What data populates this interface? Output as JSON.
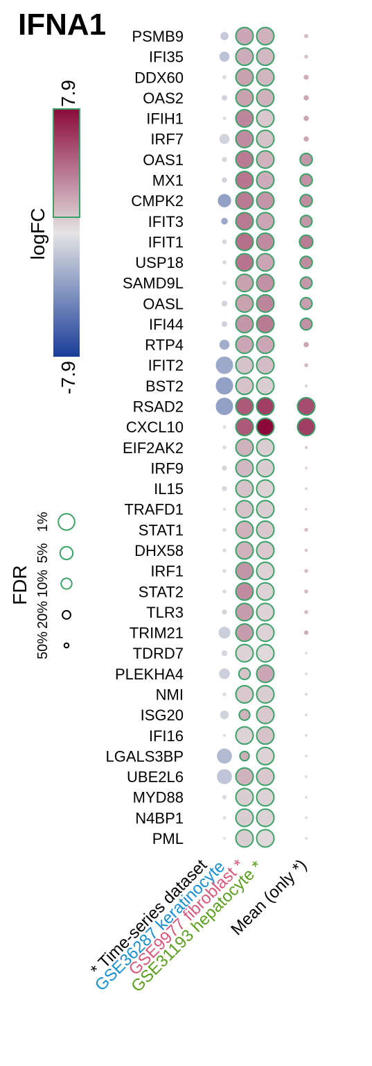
{
  "chart_data": {
    "type": "dot-heatmap",
    "title": "IFNA1",
    "color_legend": {
      "title": "logFC",
      "max": 7.9,
      "min": -7.9,
      "max_label": "7.9",
      "min_label": "-7.9",
      "colors": {
        "high": "#8b0a3a",
        "mid": "#e4e4e4",
        "low": "#1a3d99",
        "significant_outline": "#3aa168"
      }
    },
    "size_legend": {
      "title": "FDR",
      "items": [
        {
          "label": "1%",
          "fdr": 0.01
        },
        {
          "label": "5%",
          "fdr": 0.05
        },
        {
          "label": "10%",
          "fdr": 0.1
        },
        {
          "label": "20%",
          "fdr": 0.2
        },
        {
          "label": "50%",
          "fdr": 0.5
        }
      ]
    },
    "columns": [
      {
        "label": "* Time-series dataset",
        "color": "#000000"
      },
      {
        "label": "GSE36287 keratinocyte",
        "color": "#1a8fd0"
      },
      {
        "label": "GSE9977 fibroblast *",
        "color": "#d9587a"
      },
      {
        "label": "GSE31193 hepatocyte *",
        "color": "#5a9e1e"
      },
      {
        "label": "Mean (only *)",
        "color": "#000000"
      }
    ],
    "genes": [
      "PSMB9",
      "IFI35",
      "DDX60",
      "OAS2",
      "IFIH1",
      "IRF7",
      "OAS1",
      "MX1",
      "CMPK2",
      "IFIT3",
      "IFIT1",
      "USP18",
      "SAMD9L",
      "OASL",
      "IFI44",
      "RTP4",
      "IFIT2",
      "BST2",
      "RSAD2",
      "CXCL10",
      "EIF2AK2",
      "IRF9",
      "IL15",
      "TRAFD1",
      "STAT1",
      "DHX58",
      "IRF1",
      "STAT2",
      "TLR3",
      "TRIM21",
      "TDRD7",
      "PLEKHA4",
      "NMI",
      "ISG20",
      "IFI16",
      "LGALS3BP",
      "UBE2L6",
      "MYD88",
      "N4BP1",
      "PML"
    ],
    "cells": [
      [
        [
          -1.2,
          0.2,
          false
        ],
        [
          2.2,
          0.005,
          true
        ],
        [
          1.8,
          0.005,
          true
        ],
        [
          1.4,
          0.55,
          false
        ]
      ],
      [
        [
          -1.6,
          0.12,
          false
        ],
        [
          2.0,
          0.005,
          true
        ],
        [
          1.6,
          0.005,
          true
        ],
        [
          1.2,
          0.58,
          false
        ]
      ],
      [
        [
          -0.4,
          0.55,
          false
        ],
        [
          2.4,
          0.005,
          true
        ],
        [
          1.7,
          0.005,
          true
        ],
        [
          2.0,
          0.45,
          false
        ]
      ],
      [
        [
          -0.8,
          0.4,
          false
        ],
        [
          2.4,
          0.005,
          true
        ],
        [
          1.8,
          0.005,
          true
        ],
        [
          2.2,
          0.42,
          false
        ]
      ],
      [
        [
          -0.3,
          0.62,
          false
        ],
        [
          3.4,
          0.005,
          true
        ],
        [
          1.0,
          0.005,
          true
        ],
        [
          2.2,
          0.42,
          false
        ]
      ],
      [
        [
          -0.8,
          0.12,
          false
        ],
        [
          3.2,
          0.005,
          true
        ],
        [
          1.2,
          0.005,
          true
        ],
        [
          2.2,
          0.42,
          false
        ]
      ],
      [
        [
          -0.6,
          0.45,
          false
        ],
        [
          3.8,
          0.005,
          true
        ],
        [
          1.8,
          0.005,
          true
        ],
        [
          2.8,
          0.06,
          true
        ]
      ],
      [
        [
          -0.8,
          0.42,
          false
        ],
        [
          4.0,
          0.005,
          true
        ],
        [
          2.0,
          0.005,
          true
        ],
        [
          3.0,
          0.06,
          true
        ]
      ],
      [
        [
          -3.2,
          0.04,
          false
        ],
        [
          3.8,
          0.005,
          true
        ],
        [
          2.8,
          0.005,
          true
        ],
        [
          3.2,
          0.06,
          true
        ]
      ],
      [
        [
          -2.8,
          0.3,
          false
        ],
        [
          3.8,
          0.005,
          true
        ],
        [
          2.2,
          0.005,
          true
        ],
        [
          2.8,
          0.07,
          true
        ]
      ],
      [
        [
          -0.6,
          0.5,
          false
        ],
        [
          4.2,
          0.005,
          true
        ],
        [
          3.2,
          0.005,
          true
        ],
        [
          3.7,
          0.04,
          true
        ]
      ],
      [
        [
          -0.4,
          0.55,
          false
        ],
        [
          4.0,
          0.005,
          true
        ],
        [
          2.2,
          0.005,
          true
        ],
        [
          3.2,
          0.06,
          true
        ]
      ],
      [
        [
          -0.4,
          0.55,
          false
        ],
        [
          2.4,
          0.005,
          true
        ],
        [
          3.0,
          0.005,
          true
        ],
        [
          2.7,
          0.07,
          true
        ]
      ],
      [
        [
          -0.8,
          0.38,
          false
        ],
        [
          2.4,
          0.005,
          true
        ],
        [
          3.4,
          0.005,
          true
        ],
        [
          2.5,
          0.07,
          true
        ]
      ],
      [
        [
          -0.8,
          0.38,
          false
        ],
        [
          2.8,
          0.005,
          true
        ],
        [
          3.8,
          0.005,
          true
        ],
        [
          3.0,
          0.07,
          true
        ]
      ],
      [
        [
          -2.6,
          0.12,
          false
        ],
        [
          2.2,
          0.005,
          true
        ],
        [
          2.2,
          0.005,
          true
        ],
        [
          2.2,
          0.42,
          false
        ]
      ],
      [
        [
          -2.8,
          0.005,
          false
        ],
        [
          1.2,
          0.005,
          true
        ],
        [
          1.4,
          0.005,
          true
        ],
        [
          1.6,
          0.58,
          false
        ]
      ],
      [
        [
          -3.2,
          0.005,
          false
        ],
        [
          1.2,
          0.005,
          true
        ],
        [
          0.8,
          0.005,
          true
        ],
        [
          0.6,
          0.7,
          false
        ]
      ],
      [
        [
          -3.2,
          0.005,
          false
        ],
        [
          5.0,
          0.005,
          true
        ],
        [
          6.0,
          0.005,
          true
        ],
        [
          5.5,
          0.005,
          true
        ]
      ],
      [
        [
          -0.2,
          0.62,
          false
        ],
        [
          5.0,
          0.005,
          true
        ],
        [
          7.9,
          0.005,
          true
        ],
        [
          6.0,
          0.005,
          true
        ]
      ],
      [
        [
          -0.4,
          0.58,
          false
        ],
        [
          1.8,
          0.005,
          true
        ],
        [
          0.8,
          0.005,
          true
        ],
        [
          1.0,
          0.7,
          false
        ]
      ],
      [
        [
          -0.6,
          0.45,
          false
        ],
        [
          1.6,
          0.005,
          true
        ],
        [
          0.8,
          0.005,
          true
        ],
        [
          0.6,
          0.75,
          false
        ]
      ],
      [
        [
          -0.6,
          0.45,
          false
        ],
        [
          1.2,
          0.005,
          true
        ],
        [
          0.6,
          0.005,
          true
        ],
        [
          0.6,
          0.75,
          false
        ]
      ],
      [
        [
          -0.2,
          0.65,
          false
        ],
        [
          1.2,
          0.005,
          true
        ],
        [
          0.8,
          0.005,
          true
        ],
        [
          0.6,
          0.75,
          false
        ]
      ],
      [
        [
          -0.4,
          0.58,
          false
        ],
        [
          1.8,
          0.005,
          true
        ],
        [
          1.0,
          0.005,
          true
        ],
        [
          1.4,
          0.58,
          false
        ]
      ],
      [
        [
          -0.4,
          0.58,
          false
        ],
        [
          1.8,
          0.005,
          true
        ],
        [
          1.0,
          0.005,
          true
        ],
        [
          1.0,
          0.65,
          false
        ]
      ],
      [
        [
          -0.4,
          0.58,
          false
        ],
        [
          2.8,
          0.005,
          true
        ],
        [
          0.6,
          0.005,
          true
        ],
        [
          1.4,
          0.58,
          false
        ]
      ],
      [
        [
          -0.4,
          0.58,
          false
        ],
        [
          3.2,
          0.005,
          true
        ],
        [
          0.6,
          0.005,
          true
        ],
        [
          1.6,
          0.58,
          false
        ]
      ],
      [
        [
          -0.6,
          0.45,
          false
        ],
        [
          2.6,
          0.005,
          true
        ],
        [
          0.6,
          0.005,
          true
        ],
        [
          1.6,
          0.58,
          false
        ]
      ],
      [
        [
          -1.0,
          0.07,
          false
        ],
        [
          2.6,
          0.005,
          true
        ],
        [
          0.6,
          0.005,
          true
        ],
        [
          2.0,
          0.52,
          false
        ]
      ],
      [
        [
          -0.6,
          0.38,
          false
        ],
        [
          0.6,
          0.005,
          true
        ],
        [
          0.4,
          0.005,
          true
        ],
        [
          0.4,
          0.75,
          false
        ]
      ],
      [
        [
          -1.0,
          0.1,
          false
        ],
        [
          1.2,
          0.08,
          true
        ],
        [
          2.2,
          0.005,
          true
        ],
        [
          0.4,
          0.75,
          false
        ]
      ],
      [
        [
          -0.4,
          0.58,
          false
        ],
        [
          1.0,
          0.005,
          true
        ],
        [
          0.8,
          0.005,
          true
        ],
        [
          0.6,
          0.75,
          false
        ]
      ],
      [
        [
          -0.8,
          0.18,
          false
        ],
        [
          1.8,
          0.1,
          true
        ],
        [
          1.0,
          0.005,
          true
        ],
        [
          0.4,
          0.75,
          false
        ]
      ],
      [
        [
          -0.2,
          0.72,
          false
        ],
        [
          0.6,
          0.005,
          true
        ],
        [
          1.2,
          0.005,
          true
        ],
        [
          0.4,
          0.75,
          false
        ]
      ],
      [
        [
          -2.0,
          0.02,
          false
        ],
        [
          2.0,
          0.15,
          true
        ],
        [
          0.6,
          0.005,
          true
        ],
        [
          0.4,
          0.75,
          false
        ]
      ],
      [
        [
          -1.4,
          0.02,
          false
        ],
        [
          1.8,
          0.005,
          true
        ],
        [
          1.0,
          0.005,
          true
        ],
        [
          0.4,
          0.75,
          false
        ]
      ],
      [
        [
          -0.4,
          0.5,
          false
        ],
        [
          0.8,
          0.005,
          true
        ],
        [
          0.6,
          0.005,
          true
        ],
        [
          0.4,
          0.75,
          false
        ]
      ],
      [
        [
          -0.2,
          0.62,
          false
        ],
        [
          0.8,
          0.005,
          true
        ],
        [
          0.6,
          0.005,
          true
        ],
        [
          0.4,
          0.75,
          false
        ]
      ],
      [
        [
          -0.2,
          0.72,
          false
        ],
        [
          0.8,
          0.005,
          true
        ],
        [
          0.4,
          0.005,
          true
        ],
        [
          0.4,
          0.75,
          false
        ]
      ]
    ]
  }
}
